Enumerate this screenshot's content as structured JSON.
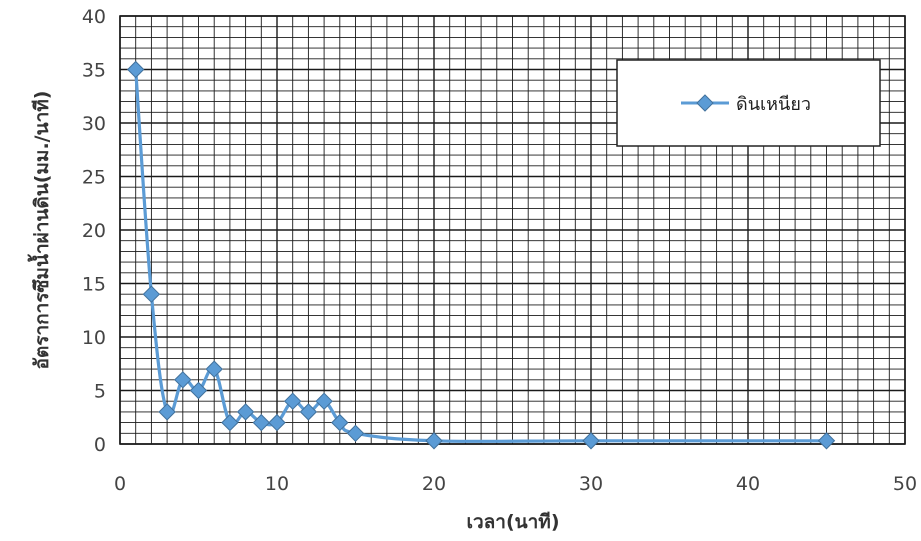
{
  "chart_data": {
    "type": "line",
    "title": "",
    "xlabel": "เวลา(นาที)",
    "ylabel": "อัตราการซึมน้ำผ่านดิน(มม./นาที)",
    "xlim": [
      0,
      50
    ],
    "ylim": [
      0,
      40
    ],
    "xticks": [
      0,
      10,
      20,
      30,
      40,
      50
    ],
    "yticks": [
      0,
      5,
      10,
      15,
      20,
      25,
      30,
      35,
      40
    ],
    "grid": true,
    "legend_position": "top-right",
    "series": [
      {
        "name": "ดินเหนียว",
        "color": "#5b9bd5",
        "marker": "diamond",
        "x": [
          1,
          2,
          3,
          4,
          5,
          6,
          7,
          8,
          9,
          10,
          11,
          12,
          13,
          14,
          15,
          20,
          30,
          45
        ],
        "y": [
          35,
          14,
          3,
          6,
          5,
          7,
          2,
          3,
          2,
          2,
          4,
          3,
          4,
          2,
          1,
          0.3,
          0.3,
          0.3
        ]
      }
    ]
  }
}
